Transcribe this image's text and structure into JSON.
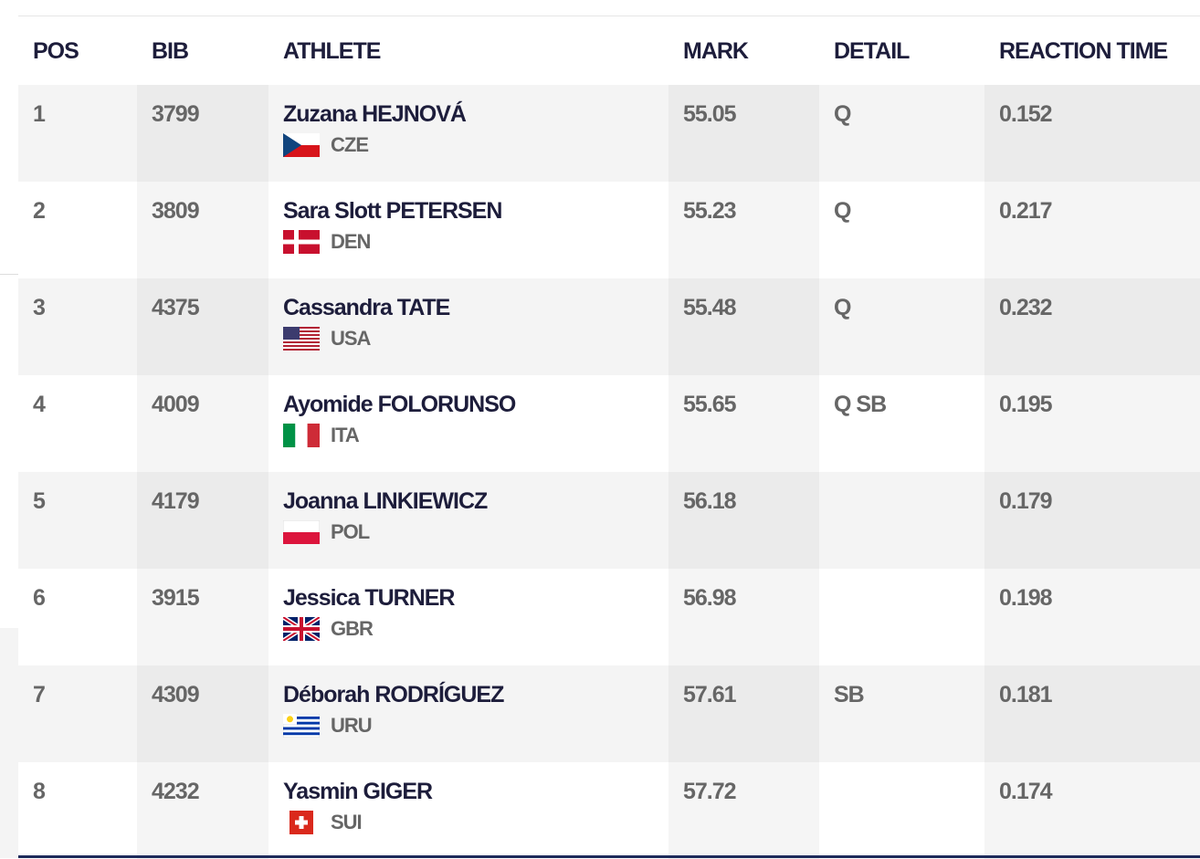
{
  "table": {
    "headers": [
      "POS",
      "BIB",
      "ATHLETE",
      "MARK",
      "DETAIL",
      "REACTION TIME"
    ],
    "rows": [
      {
        "pos": 1,
        "bib": 3799,
        "athlete": "Zuzana HEJNOVÁ",
        "country": "CZE",
        "mark": 55.05,
        "detail": "Q",
        "reaction_time": 0.152
      },
      {
        "pos": 2,
        "bib": 3809,
        "athlete": "Sara Slott PETERSEN",
        "country": "DEN",
        "mark": 55.23,
        "detail": "Q",
        "reaction_time": 0.217
      },
      {
        "pos": 3,
        "bib": 4375,
        "athlete": "Cassandra TATE",
        "country": "USA",
        "mark": 55.48,
        "detail": "Q",
        "reaction_time": 0.232
      },
      {
        "pos": 4,
        "bib": 4009,
        "athlete": "Ayomide FOLORUNSO",
        "country": "ITA",
        "mark": 55.65,
        "detail": "Q SB",
        "reaction_time": 0.195
      },
      {
        "pos": 5,
        "bib": 4179,
        "athlete": "Joanna LINKIEWICZ",
        "country": "POL",
        "mark": 56.18,
        "reaction_time": 0.179
      },
      {
        "pos": 6,
        "bib": 3915,
        "athlete": "Jessica TURNER",
        "country": "GBR",
        "mark": 56.98,
        "reaction_time": 0.198
      },
      {
        "pos": 7,
        "bib": 4309,
        "athlete": "Déborah RODRÍGUEZ",
        "country": "URU",
        "mark": 57.61,
        "detail": "SB",
        "reaction_time": 0.181
      },
      {
        "pos": 8,
        "bib": 4232,
        "athlete": "Yasmin GIGER",
        "country": "SUI",
        "mark": 57.72,
        "reaction_time": 0.174
      }
    ]
  }
}
